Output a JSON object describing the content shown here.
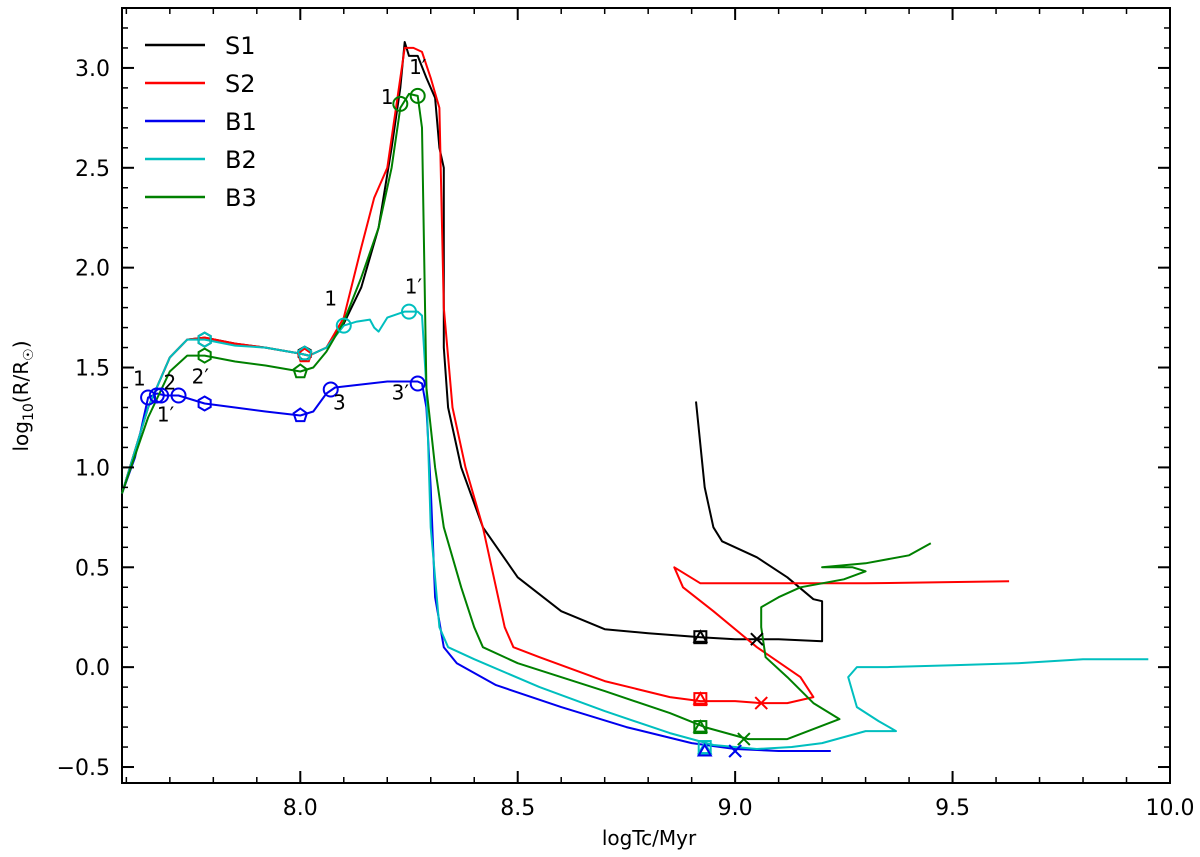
{
  "chart_data": {
    "type": "line",
    "xlabel": "logTc/Myr",
    "ylabel_main": "log",
    "ylabel_sub": "10",
    "ylabel_rest": "(R/R",
    "ylabel_sun": "☉",
    "ylabel_close": ")",
    "xlim": [
      7.59,
      10.0
    ],
    "ylim": [
      -0.58,
      3.3
    ],
    "xticks": [
      8.0,
      8.5,
      9.0,
      9.5,
      10.0
    ],
    "xtick_labels": [
      "8.0",
      "8.5",
      "9.0",
      "9.5",
      "10.0"
    ],
    "yticks": [
      -0.5,
      0.0,
      0.5,
      1.0,
      1.5,
      2.0,
      2.5,
      3.0
    ],
    "ytick_labels": [
      "−0.5",
      "0.0",
      "0.5",
      "1.0",
      "1.5",
      "2.0",
      "2.5",
      "3.0"
    ],
    "legend_position": "top-left",
    "series": [
      {
        "name": "S1",
        "color": "#000000",
        "points": [
          [
            7.59,
            0.87
          ],
          [
            7.65,
            1.3
          ],
          [
            7.7,
            1.55
          ],
          [
            7.74,
            1.64
          ],
          [
            7.78,
            1.65
          ],
          [
            7.85,
            1.62
          ],
          [
            7.92,
            1.6
          ],
          [
            8.0,
            1.57
          ],
          [
            8.02,
            1.56
          ],
          [
            8.06,
            1.6
          ],
          [
            8.1,
            1.72
          ],
          [
            8.14,
            1.9
          ],
          [
            8.18,
            2.2
          ],
          [
            8.21,
            2.6
          ],
          [
            8.23,
            2.9
          ],
          [
            8.24,
            3.13
          ],
          [
            8.25,
            3.06
          ],
          [
            8.27,
            3.06
          ],
          [
            8.29,
            2.95
          ],
          [
            8.31,
            2.85
          ],
          [
            8.32,
            2.6
          ],
          [
            8.33,
            2.5
          ],
          [
            8.33,
            1.6
          ],
          [
            8.34,
            1.3
          ],
          [
            8.37,
            1.0
          ],
          [
            8.42,
            0.7
          ],
          [
            8.5,
            0.45
          ],
          [
            8.6,
            0.28
          ],
          [
            8.7,
            0.19
          ],
          [
            8.8,
            0.17
          ],
          [
            8.92,
            0.15
          ],
          [
            9.0,
            0.14
          ],
          [
            9.1,
            0.14
          ],
          [
            9.2,
            0.13
          ],
          [
            9.2,
            0.33
          ],
          [
            9.18,
            0.34
          ],
          [
            9.12,
            0.45
          ],
          [
            9.05,
            0.55
          ],
          [
            8.97,
            0.63
          ],
          [
            8.95,
            0.7
          ],
          [
            8.93,
            0.9
          ],
          [
            8.91,
            1.33
          ]
        ]
      },
      {
        "name": "S2",
        "color": "#ff0000",
        "points": [
          [
            7.59,
            0.87
          ],
          [
            7.65,
            1.3
          ],
          [
            7.7,
            1.55
          ],
          [
            7.74,
            1.64
          ],
          [
            7.78,
            1.65
          ],
          [
            7.85,
            1.62
          ],
          [
            7.92,
            1.6
          ],
          [
            8.0,
            1.57
          ],
          [
            8.02,
            1.56
          ],
          [
            8.06,
            1.6
          ],
          [
            8.1,
            1.75
          ],
          [
            8.14,
            2.1
          ],
          [
            8.17,
            2.35
          ],
          [
            8.2,
            2.5
          ],
          [
            8.22,
            2.8
          ],
          [
            8.24,
            3.1
          ],
          [
            8.26,
            3.1
          ],
          [
            8.28,
            3.08
          ],
          [
            8.3,
            2.95
          ],
          [
            8.32,
            2.8
          ],
          [
            8.33,
            1.8
          ],
          [
            8.35,
            1.3
          ],
          [
            8.38,
            1.0
          ],
          [
            8.42,
            0.7
          ],
          [
            8.45,
            0.4
          ],
          [
            8.47,
            0.2
          ],
          [
            8.49,
            0.1
          ],
          [
            8.55,
            0.05
          ],
          [
            8.7,
            -0.07
          ],
          [
            8.85,
            -0.15
          ],
          [
            8.92,
            -0.17
          ],
          [
            9.0,
            -0.17
          ],
          [
            9.06,
            -0.18
          ],
          [
            9.12,
            -0.18
          ],
          [
            9.18,
            -0.15
          ],
          [
            9.15,
            -0.05
          ],
          [
            9.05,
            0.1
          ],
          [
            8.95,
            0.28
          ],
          [
            8.88,
            0.4
          ],
          [
            8.86,
            0.5
          ],
          [
            8.92,
            0.42
          ],
          [
            9.3,
            0.42
          ],
          [
            9.63,
            0.43
          ]
        ]
      },
      {
        "name": "B1",
        "color": "#0000ee",
        "points": [
          [
            7.59,
            0.87
          ],
          [
            7.62,
            1.05
          ],
          [
            7.64,
            1.25
          ],
          [
            7.65,
            1.35
          ],
          [
            7.67,
            1.37
          ],
          [
            7.69,
            1.36
          ],
          [
            7.72,
            1.36
          ],
          [
            7.75,
            1.34
          ],
          [
            7.78,
            1.32
          ],
          [
            7.85,
            1.3
          ],
          [
            7.92,
            1.28
          ],
          [
            8.0,
            1.26
          ],
          [
            8.03,
            1.28
          ],
          [
            8.06,
            1.37
          ],
          [
            8.08,
            1.4
          ],
          [
            8.12,
            1.41
          ],
          [
            8.2,
            1.43
          ],
          [
            8.27,
            1.43
          ],
          [
            8.28,
            1.42
          ],
          [
            8.29,
            1.3
          ],
          [
            8.3,
            0.9
          ],
          [
            8.31,
            0.35
          ],
          [
            8.33,
            0.1
          ],
          [
            8.36,
            0.02
          ],
          [
            8.45,
            -0.09
          ],
          [
            8.6,
            -0.2
          ],
          [
            8.75,
            -0.3
          ],
          [
            8.9,
            -0.38
          ],
          [
            9.0,
            -0.41
          ],
          [
            9.1,
            -0.42
          ],
          [
            9.22,
            -0.42
          ]
        ]
      },
      {
        "name": "B2",
        "color": "#00bfbf",
        "points": [
          [
            7.59,
            0.87
          ],
          [
            7.65,
            1.3
          ],
          [
            7.7,
            1.55
          ],
          [
            7.74,
            1.64
          ],
          [
            7.78,
            1.64
          ],
          [
            7.85,
            1.61
          ],
          [
            7.92,
            1.6
          ],
          [
            8.0,
            1.57
          ],
          [
            8.02,
            1.56
          ],
          [
            8.06,
            1.6
          ],
          [
            8.1,
            1.71
          ],
          [
            8.13,
            1.73
          ],
          [
            8.16,
            1.74
          ],
          [
            8.17,
            1.7
          ],
          [
            8.18,
            1.68
          ],
          [
            8.2,
            1.75
          ],
          [
            8.24,
            1.78
          ],
          [
            8.27,
            1.78
          ],
          [
            8.28,
            1.76
          ],
          [
            8.29,
            1.4
          ],
          [
            8.3,
            0.7
          ],
          [
            8.32,
            0.2
          ],
          [
            8.34,
            0.1
          ],
          [
            8.4,
            0.04
          ],
          [
            8.55,
            -0.1
          ],
          [
            8.7,
            -0.22
          ],
          [
            8.85,
            -0.33
          ],
          [
            8.95,
            -0.39
          ],
          [
            9.05,
            -0.41
          ],
          [
            9.13,
            -0.4
          ],
          [
            9.2,
            -0.38
          ],
          [
            9.3,
            -0.32
          ],
          [
            9.37,
            -0.32
          ],
          [
            9.33,
            -0.27
          ],
          [
            9.28,
            -0.2
          ],
          [
            9.26,
            -0.05
          ],
          [
            9.28,
            0.0
          ],
          [
            9.35,
            0.0
          ],
          [
            9.5,
            0.01
          ],
          [
            9.65,
            0.02
          ],
          [
            9.8,
            0.04
          ],
          [
            9.95,
            0.04
          ]
        ]
      },
      {
        "name": "B3",
        "color": "#008000",
        "points": [
          [
            7.59,
            0.87
          ],
          [
            7.65,
            1.25
          ],
          [
            7.7,
            1.48
          ],
          [
            7.74,
            1.56
          ],
          [
            7.78,
            1.56
          ],
          [
            7.85,
            1.53
          ],
          [
            7.92,
            1.51
          ],
          [
            8.0,
            1.48
          ],
          [
            8.03,
            1.5
          ],
          [
            8.06,
            1.58
          ],
          [
            8.1,
            1.73
          ],
          [
            8.14,
            1.95
          ],
          [
            8.18,
            2.2
          ],
          [
            8.21,
            2.5
          ],
          [
            8.23,
            2.8
          ],
          [
            8.25,
            2.87
          ],
          [
            8.27,
            2.86
          ],
          [
            8.28,
            2.7
          ],
          [
            8.29,
            1.4
          ],
          [
            8.31,
            1.0
          ],
          [
            8.33,
            0.7
          ],
          [
            8.37,
            0.4
          ],
          [
            8.4,
            0.2
          ],
          [
            8.42,
            0.1
          ],
          [
            8.5,
            0.02
          ],
          [
            8.7,
            -0.12
          ],
          [
            8.85,
            -0.23
          ],
          [
            8.93,
            -0.3
          ],
          [
            9.03,
            -0.36
          ],
          [
            9.12,
            -0.36
          ],
          [
            9.24,
            -0.26
          ],
          [
            9.18,
            -0.18
          ],
          [
            9.12,
            -0.05
          ],
          [
            9.07,
            0.05
          ],
          [
            9.06,
            0.2
          ],
          [
            9.06,
            0.3
          ],
          [
            9.1,
            0.35
          ],
          [
            9.15,
            0.4
          ],
          [
            9.25,
            0.44
          ],
          [
            9.3,
            0.48
          ],
          [
            9.27,
            0.5
          ],
          [
            9.2,
            0.5
          ],
          [
            9.3,
            0.52
          ],
          [
            9.4,
            0.56
          ],
          [
            9.45,
            0.62
          ]
        ]
      }
    ],
    "markers": [
      {
        "x": 7.65,
        "y": 1.35,
        "shape": "circle",
        "color": "#0000ee"
      },
      {
        "x": 7.67,
        "y": 1.36,
        "shape": "circle",
        "color": "#0000ee"
      },
      {
        "x": 7.68,
        "y": 1.36,
        "shape": "circle",
        "color": "#0000ee"
      },
      {
        "x": 7.72,
        "y": 1.36,
        "shape": "circle",
        "color": "#0000ee"
      },
      {
        "x": 8.07,
        "y": 1.39,
        "shape": "circle",
        "color": "#0000ee"
      },
      {
        "x": 8.27,
        "y": 1.42,
        "shape": "circle",
        "color": "#0000ee"
      },
      {
        "x": 8.1,
        "y": 1.71,
        "shape": "circle",
        "color": "#00bfbf"
      },
      {
        "x": 8.25,
        "y": 1.78,
        "shape": "circle",
        "color": "#00bfbf"
      },
      {
        "x": 8.23,
        "y": 2.82,
        "shape": "circle",
        "color": "#008000"
      },
      {
        "x": 8.27,
        "y": 2.86,
        "shape": "circle",
        "color": "#008000"
      },
      {
        "x": 7.78,
        "y": 1.64,
        "shape": "hexagon",
        "color": "#000000"
      },
      {
        "x": 7.78,
        "y": 1.64,
        "shape": "hexagon",
        "color": "#00bfbf"
      },
      {
        "x": 7.78,
        "y": 1.56,
        "shape": "hexagon",
        "color": "#008000"
      },
      {
        "x": 7.78,
        "y": 1.32,
        "shape": "hexagon",
        "color": "#0000ee"
      },
      {
        "x": 8.01,
        "y": 1.57,
        "shape": "hexagon",
        "color": "#000000"
      },
      {
        "x": 8.01,
        "y": 1.56,
        "shape": "pentagon",
        "color": "#ff0000"
      },
      {
        "x": 8.01,
        "y": 1.57,
        "shape": "pentagon",
        "color": "#00bfbf"
      },
      {
        "x": 8.0,
        "y": 1.48,
        "shape": "pentagon",
        "color": "#008000"
      },
      {
        "x": 8.0,
        "y": 1.26,
        "shape": "pentagon",
        "color": "#0000ee"
      },
      {
        "x": 8.92,
        "y": 0.15,
        "shape": "square",
        "color": "#000000"
      },
      {
        "x": 8.92,
        "y": 0.15,
        "shape": "triangle",
        "color": "#000000"
      },
      {
        "x": 9.05,
        "y": 0.14,
        "shape": "x",
        "color": "#000000"
      },
      {
        "x": 8.92,
        "y": -0.16,
        "shape": "square",
        "color": "#ff0000"
      },
      {
        "x": 8.92,
        "y": -0.16,
        "shape": "triangle",
        "color": "#ff0000"
      },
      {
        "x": 9.06,
        "y": -0.18,
        "shape": "x",
        "color": "#ff0000"
      },
      {
        "x": 8.92,
        "y": -0.3,
        "shape": "square",
        "color": "#008000"
      },
      {
        "x": 8.92,
        "y": -0.3,
        "shape": "triangle",
        "color": "#008000"
      },
      {
        "x": 9.02,
        "y": -0.36,
        "shape": "x",
        "color": "#008000"
      },
      {
        "x": 8.93,
        "y": -0.4,
        "shape": "square",
        "color": "#00bfbf"
      },
      {
        "x": 8.93,
        "y": -0.41,
        "shape": "triangle",
        "color": "#00bfbf"
      },
      {
        "x": 9.0,
        "y": -0.42,
        "shape": "x",
        "color": "#00bfbf"
      },
      {
        "x": 8.93,
        "y": -0.42,
        "shape": "triangle",
        "color": "#0000ee"
      },
      {
        "x": 9.0,
        "y": -0.42,
        "shape": "x",
        "color": "#0000ee"
      }
    ],
    "annotations": [
      {
        "text": "1",
        "x": 7.63,
        "y": 1.41
      },
      {
        "text": "2",
        "x": 7.7,
        "y": 1.39
      },
      {
        "text": "1′",
        "x": 7.69,
        "y": 1.23
      },
      {
        "text": "2′",
        "x": 7.77,
        "y": 1.42
      },
      {
        "text": "3",
        "x": 8.09,
        "y": 1.29
      },
      {
        "text": "3′",
        "x": 8.23,
        "y": 1.34
      },
      {
        "text": "1",
        "x": 8.07,
        "y": 1.81
      },
      {
        "text": "1′",
        "x": 8.26,
        "y": 1.87
      },
      {
        "text": "1",
        "x": 8.2,
        "y": 2.82
      },
      {
        "text": "1′",
        "x": 8.27,
        "y": 2.97
      }
    ]
  }
}
